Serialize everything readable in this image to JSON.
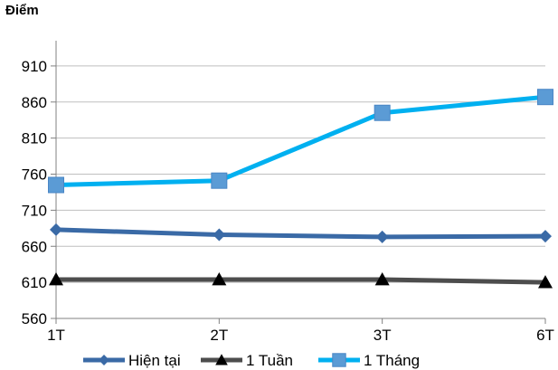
{
  "chart_data": {
    "type": "line",
    "title": "",
    "xlabel": "",
    "ylabel": "Điểm",
    "categories": [
      "1T",
      "2T",
      "3T",
      "6T"
    ],
    "ylim": [
      560,
      910
    ],
    "yticks": [
      560,
      610,
      660,
      710,
      760,
      810,
      860,
      910
    ],
    "grid": true,
    "legend": "bottom",
    "series": [
      {
        "name": "Hiện tại",
        "values": [
          683,
          676,
          673,
          674
        ],
        "color": "#3A6AA6",
        "marker": "diamond"
      },
      {
        "name": "1 Tuần",
        "values": [
          614,
          614,
          614,
          610
        ],
        "color": "#4D4D4D",
        "marker": "triangle"
      },
      {
        "name": "1 Tháng",
        "values": [
          745,
          751,
          845,
          867
        ],
        "color": "#00B0F0",
        "marker": "square"
      }
    ]
  },
  "colors": {
    "grid": "#BFBFBF",
    "axis": "#808080",
    "text": "#000000"
  }
}
